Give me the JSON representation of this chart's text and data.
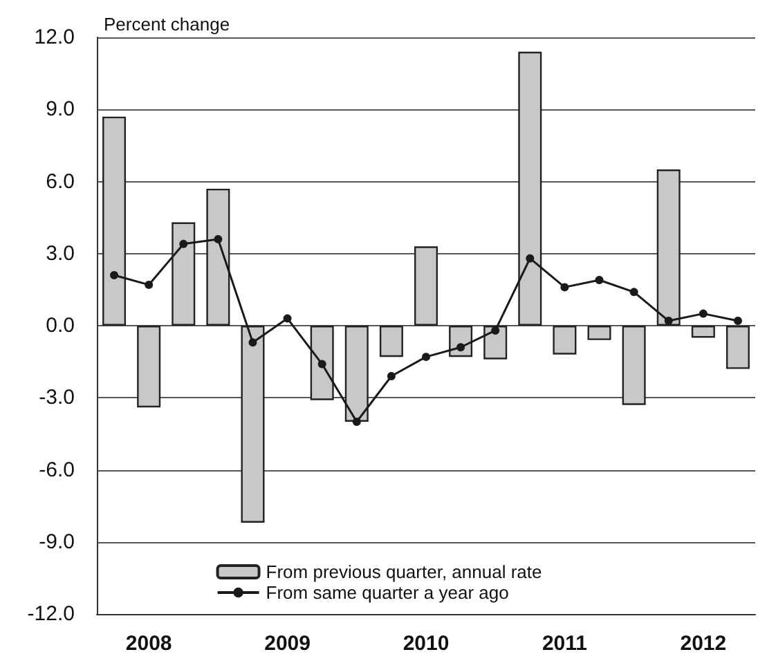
{
  "chart_data": {
    "type": "bar",
    "ylabel": "Percent change",
    "categories": [
      null,
      "2008",
      null,
      null,
      null,
      "2009",
      null,
      null,
      null,
      "2010",
      null,
      null,
      null,
      "2011",
      null,
      null,
      null,
      "2012",
      null
    ],
    "series": [
      {
        "name": "From previous quarter, annual rate",
        "color": "#c8c8c8",
        "values": [
          8.7,
          -3.4,
          4.3,
          5.7,
          -8.2,
          null,
          -3.1,
          -4.0,
          -1.3,
          3.3,
          -1.3,
          -1.4,
          11.4,
          -1.2,
          -0.6,
          -3.3,
          6.5,
          -0.5,
          -1.8
        ]
      },
      {
        "name": "From same quarter a year ago",
        "type": "line",
        "color": "#1a1a1a",
        "marker": "circle",
        "values": [
          2.1,
          1.7,
          3.4,
          3.6,
          -0.7,
          0.3,
          -1.6,
          -4.0,
          -2.1,
          -1.3,
          -0.9,
          -0.2,
          2.8,
          1.6,
          1.9,
          1.4,
          0.2,
          0.5,
          0.2
        ]
      }
    ],
    "ylim": [
      -12,
      12
    ],
    "yticks": [
      {
        "value": -12,
        "label": "-12.0"
      },
      {
        "value": -9,
        "label": "-9.0"
      },
      {
        "value": -6,
        "label": "-6.0"
      },
      {
        "value": -3,
        "label": "-3.0"
      },
      {
        "value": 0,
        "label": "0.0"
      },
      {
        "value": 3,
        "label": "3.0"
      },
      {
        "value": 6,
        "label": "6.0"
      },
      {
        "value": 9,
        "label": "9.0"
      },
      {
        "value": 12,
        "label": "12.0"
      }
    ],
    "grid": "y",
    "legend": "bottom"
  }
}
